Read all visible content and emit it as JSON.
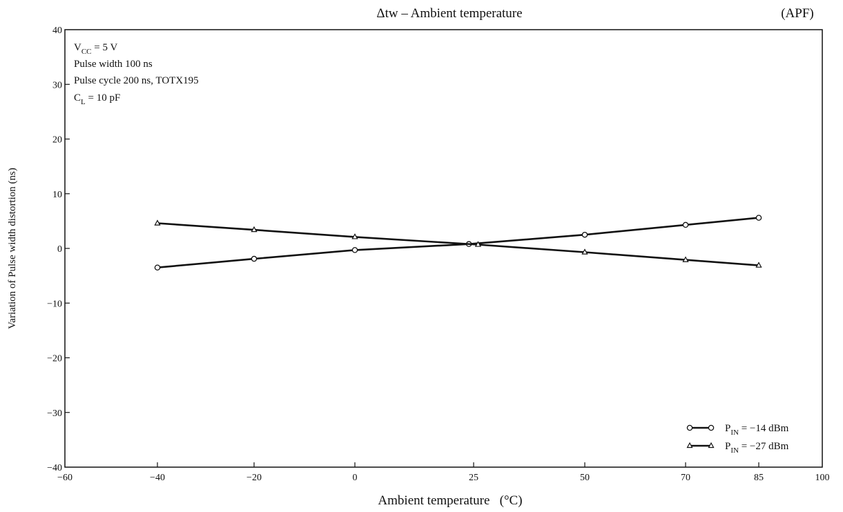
{
  "chart_data": {
    "type": "line",
    "title": "Δtw – Ambient temperature",
    "corner_tag": "(APF)",
    "xlabel": "Ambient temperature   (°C)",
    "ylabel": "Variation of Pulse width distortion   (ns)",
    "xlim": [
      -60,
      100
    ],
    "ylim": [
      -40,
      40
    ],
    "x_ticks": [
      -60,
      -40,
      -20,
      0,
      25,
      50,
      70,
      85,
      100
    ],
    "x_tick_labels": [
      "−60",
      "−40",
      "−20",
      "0",
      "25",
      "50",
      "70",
      "85",
      "100"
    ],
    "y_ticks": [
      -40,
      -30,
      -20,
      -10,
      0,
      10,
      20,
      30,
      40
    ],
    "y_tick_labels": [
      "−40",
      "−30",
      "−20",
      "−10",
      "0",
      "10",
      "20",
      "30",
      "40"
    ],
    "x_scale_note": "non-uniform axis: positions follow tick labels",
    "grid": false,
    "legend_position": "bottom-right",
    "conditions": [
      {
        "main": "V",
        "sub": "CC",
        "rest": " = 5 V"
      },
      {
        "main": "Pulse width 100 ns",
        "sub": "",
        "rest": ""
      },
      {
        "main": "Pulse cycle 200 ns, TOTX195",
        "sub": "",
        "rest": ""
      },
      {
        "main": "C",
        "sub": "L",
        "rest": " = 10 pF"
      }
    ],
    "series": [
      {
        "name": "P_IN = −14 dBm",
        "legend_main": "P",
        "legend_sub": "IN",
        "legend_rest": " = −14 dBm",
        "marker": "circle",
        "x": [
          -40,
          -20,
          0,
          24,
          50,
          70,
          85
        ],
        "y": [
          -3.5,
          -1.9,
          -0.3,
          0.8,
          2.5,
          4.3,
          5.6
        ]
      },
      {
        "name": "P_IN = −27 dBm",
        "legend_main": "P",
        "legend_sub": "IN",
        "legend_rest": " = −27 dBm",
        "marker": "triangle",
        "x": [
          -40,
          -20,
          0,
          26,
          50,
          70,
          85
        ],
        "y": [
          4.6,
          3.4,
          2.1,
          0.7,
          -0.7,
          -2.1,
          -3.1
        ]
      }
    ]
  }
}
